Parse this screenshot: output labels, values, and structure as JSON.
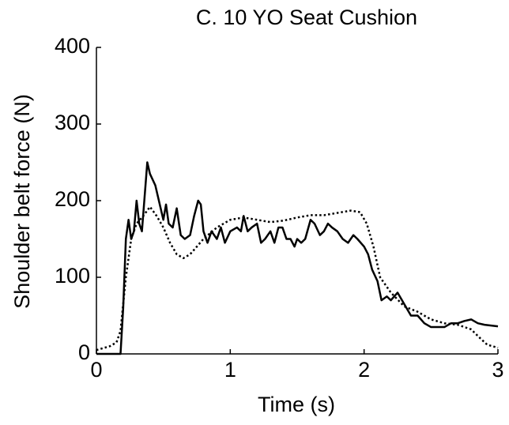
{
  "chart_data": {
    "type": "line",
    "title": "C. 10 YO Seat Cushion",
    "x_label": "Time (s)",
    "y_label": "Shoulder belt force (N)",
    "xlim": [
      0,
      3
    ],
    "xticks": [
      0,
      1,
      2,
      3
    ],
    "ylim": [
      0,
      400
    ],
    "yticks": [
      0,
      100,
      200,
      300,
      400
    ],
    "series": [
      {
        "color": "#000000",
        "style": "solid",
        "x": [
          0,
          0.1,
          0.18,
          0.2,
          0.22,
          0.24,
          0.26,
          0.28,
          0.3,
          0.32,
          0.34,
          0.36,
          0.38,
          0.4,
          0.44,
          0.48,
          0.5,
          0.52,
          0.54,
          0.57,
          0.6,
          0.63,
          0.66,
          0.7,
          0.73,
          0.76,
          0.78,
          0.8,
          0.83,
          0.86,
          0.9,
          0.93,
          0.96,
          1.0,
          1.05,
          1.08,
          1.1,
          1.13,
          1.16,
          1.2,
          1.23,
          1.26,
          1.3,
          1.33,
          1.36,
          1.39,
          1.42,
          1.45,
          1.48,
          1.5,
          1.53,
          1.56,
          1.6,
          1.63,
          1.67,
          1.7,
          1.73,
          1.76,
          1.8,
          1.84,
          1.88,
          1.92,
          1.95,
          2.0,
          2.03,
          2.06,
          2.1,
          2.13,
          2.17,
          2.2,
          2.25,
          2.3,
          2.35,
          2.4,
          2.45,
          2.5,
          2.55,
          2.6,
          2.65,
          2.7,
          2.75,
          2.8,
          2.85,
          2.9,
          2.95,
          3.0
        ],
        "values": [
          0,
          0,
          0,
          60,
          150,
          175,
          150,
          160,
          200,
          170,
          160,
          205,
          250,
          235,
          220,
          190,
          175,
          195,
          170,
          165,
          190,
          155,
          150,
          155,
          180,
          200,
          195,
          160,
          145,
          160,
          150,
          165,
          145,
          160,
          165,
          160,
          180,
          160,
          165,
          170,
          145,
          150,
          160,
          145,
          165,
          165,
          150,
          150,
          140,
          150,
          145,
          150,
          175,
          170,
          155,
          160,
          170,
          165,
          160,
          150,
          145,
          155,
          150,
          140,
          130,
          110,
          95,
          70,
          75,
          70,
          80,
          65,
          50,
          50,
          40,
          35,
          35,
          35,
          40,
          40,
          43,
          45,
          40,
          38,
          37,
          36
        ]
      },
      {
        "color": "#000000",
        "style": "dotted",
        "x": [
          0,
          0.1,
          0.15,
          0.18,
          0.22,
          0.26,
          0.3,
          0.35,
          0.4,
          0.45,
          0.5,
          0.55,
          0.6,
          0.65,
          0.7,
          0.8,
          0.9,
          1.0,
          1.1,
          1.2,
          1.3,
          1.4,
          1.5,
          1.6,
          1.7,
          1.8,
          1.9,
          1.97,
          2.02,
          2.07,
          2.12,
          2.2,
          2.3,
          2.4,
          2.5,
          2.6,
          2.7,
          2.8,
          2.87,
          2.92,
          3.0
        ],
        "values": [
          5,
          10,
          15,
          30,
          100,
          150,
          170,
          180,
          192,
          180,
          165,
          145,
          130,
          125,
          130,
          150,
          165,
          175,
          178,
          175,
          172,
          174,
          178,
          181,
          181,
          184,
          187,
          185,
          170,
          140,
          100,
          80,
          62,
          55,
          45,
          40,
          38,
          32,
          20,
          12,
          8
        ]
      }
    ]
  }
}
